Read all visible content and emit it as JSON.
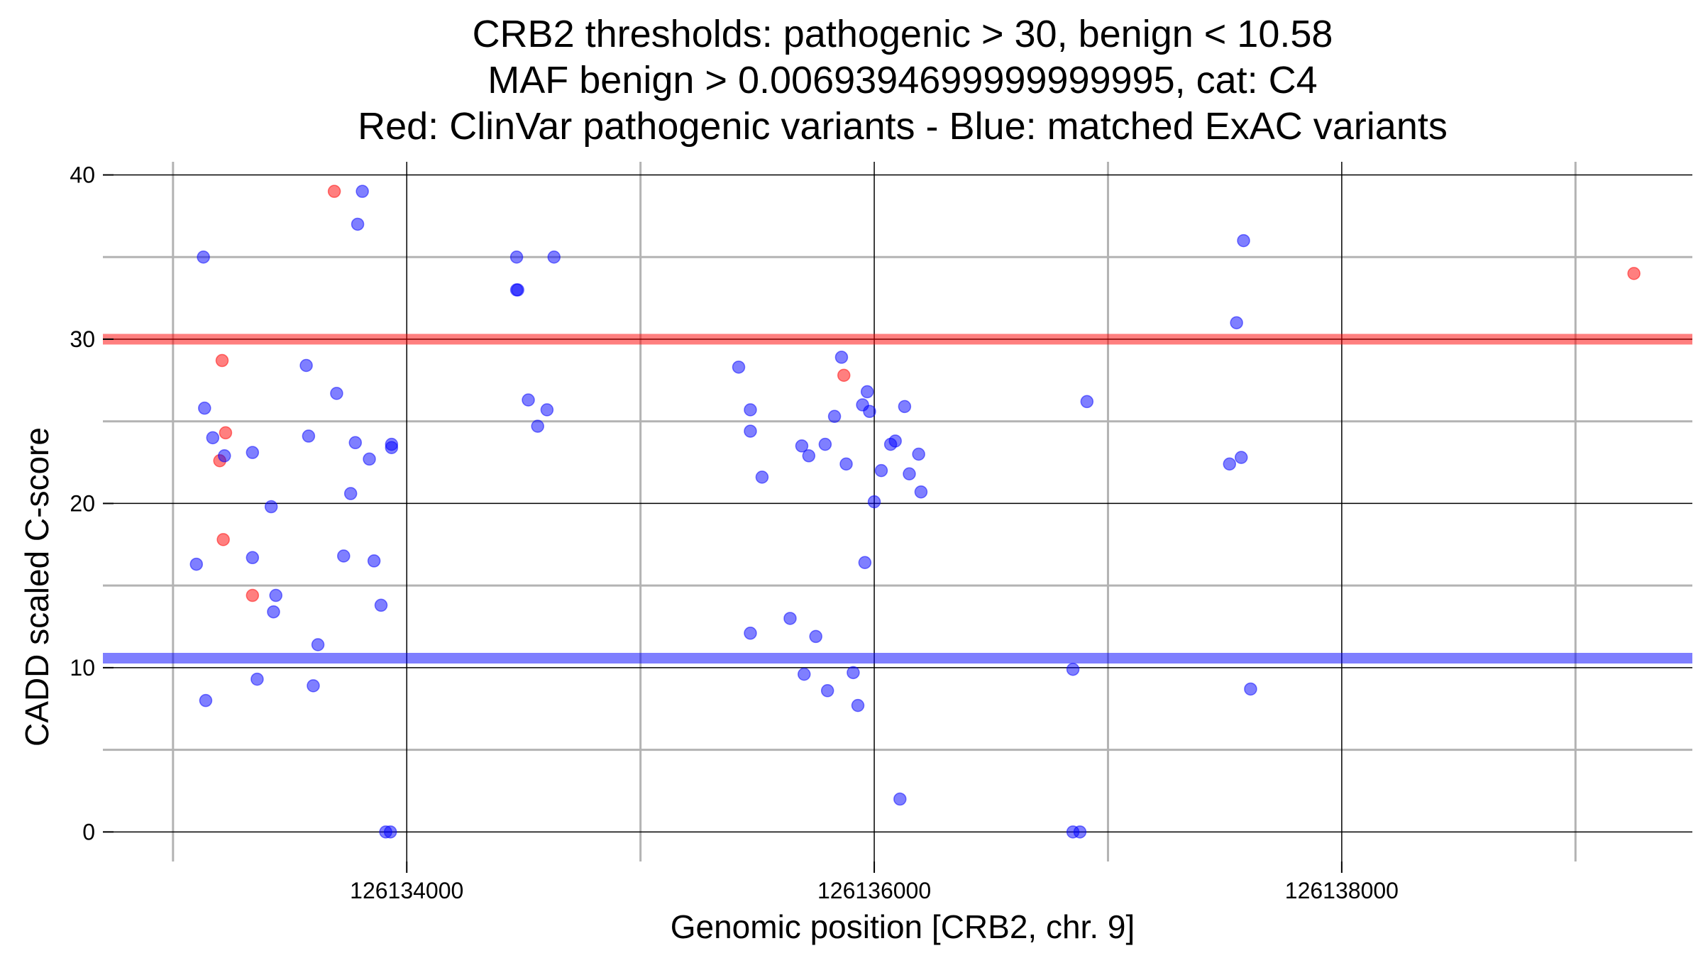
{
  "chart_data": {
    "type": "scatter",
    "title": [
      "CRB2 thresholds: pathogenic > 30, benign < 10.58",
      "MAF benign > 0.0069394699999999995, cat: C4",
      "Red: ClinVar pathogenic variants - Blue: matched ExAC variants"
    ],
    "xlabel": "Genomic position [CRB2, chr. 9]",
    "ylabel": "CADD scaled C-score",
    "xlim": [
      126132700,
      126139500
    ],
    "ylim": [
      -1.8,
      40.8
    ],
    "x_major_ticks": [
      126134000,
      126136000,
      126138000
    ],
    "x_tick_labels": [
      "126134000",
      "126136000",
      "126138000"
    ],
    "x_minor_gridlines": [
      126133000,
      126135000,
      126137000,
      126139000
    ],
    "y_major_ticks": [
      0,
      10,
      20,
      30,
      40
    ],
    "y_tick_labels": [
      "0",
      "10",
      "20",
      "30",
      "40"
    ],
    "y_minor_gridlines": [
      5,
      15,
      25,
      35
    ],
    "grid": true,
    "thresholds": [
      {
        "name": "pathogenic",
        "value": 30,
        "color": "#ff0000"
      },
      {
        "name": "benign",
        "value": 10.58,
        "color": "#0000ff"
      }
    ],
    "series": [
      {
        "name": "ClinVar pathogenic variants",
        "color": "#ff0000",
        "points": [
          [
            126133200,
            22.6
          ],
          [
            126133210,
            28.7
          ],
          [
            126133215,
            17.8
          ],
          [
            126133225,
            24.3
          ],
          [
            126133340,
            14.4
          ],
          [
            126133690,
            39.0
          ],
          [
            126135870,
            27.8
          ],
          [
            126139250,
            34.0
          ]
        ]
      },
      {
        "name": "matched ExAC variants",
        "color": "#0000ff",
        "points": [
          [
            126133100,
            16.3
          ],
          [
            126133130,
            35.0
          ],
          [
            126133135,
            25.8
          ],
          [
            126133140,
            8.0
          ],
          [
            126133170,
            24.0
          ],
          [
            126133220,
            22.9
          ],
          [
            126133340,
            23.1
          ],
          [
            126133340,
            16.7
          ],
          [
            126133360,
            9.3
          ],
          [
            126133420,
            19.8
          ],
          [
            126133430,
            13.4
          ],
          [
            126133440,
            14.4
          ],
          [
            126133570,
            28.4
          ],
          [
            126133580,
            24.1
          ],
          [
            126133600,
            8.9
          ],
          [
            126133620,
            11.4
          ],
          [
            126133700,
            26.7
          ],
          [
            126133730,
            16.8
          ],
          [
            126133760,
            20.6
          ],
          [
            126133780,
            23.7
          ],
          [
            126133790,
            37.0
          ],
          [
            126133810,
            39.0
          ],
          [
            126133840,
            22.7
          ],
          [
            126133860,
            16.5
          ],
          [
            126133890,
            13.8
          ],
          [
            126133910,
            0.0
          ],
          [
            126133930,
            0.0
          ],
          [
            126133935,
            23.6
          ],
          [
            126133935,
            23.4
          ],
          [
            126134470,
            35.0
          ],
          [
            126134470,
            33.0
          ],
          [
            126134475,
            33.0
          ],
          [
            126134520,
            26.3
          ],
          [
            126134560,
            24.7
          ],
          [
            126134600,
            25.7
          ],
          [
            126134630,
            35.0
          ],
          [
            126135420,
            28.3
          ],
          [
            126135470,
            25.7
          ],
          [
            126135470,
            24.4
          ],
          [
            126135470,
            12.1
          ],
          [
            126135520,
            21.6
          ],
          [
            126135640,
            13.0
          ],
          [
            126135690,
            23.5
          ],
          [
            126135700,
            9.6
          ],
          [
            126135720,
            22.9
          ],
          [
            126135750,
            11.9
          ],
          [
            126135790,
            23.6
          ],
          [
            126135800,
            8.6
          ],
          [
            126135830,
            25.3
          ],
          [
            126135860,
            28.9
          ],
          [
            126135880,
            22.4
          ],
          [
            126135910,
            9.7
          ],
          [
            126135930,
            7.7
          ],
          [
            126135950,
            26.0
          ],
          [
            126135960,
            16.4
          ],
          [
            126135970,
            26.8
          ],
          [
            126135980,
            25.6
          ],
          [
            126136000,
            20.1
          ],
          [
            126136030,
            22.0
          ],
          [
            126136070,
            23.6
          ],
          [
            126136090,
            23.8
          ],
          [
            126136110,
            2.0
          ],
          [
            126136130,
            25.9
          ],
          [
            126136150,
            21.8
          ],
          [
            126136190,
            23.0
          ],
          [
            126136200,
            20.7
          ],
          [
            126136850,
            9.9
          ],
          [
            126136850,
            0.0
          ],
          [
            126136880,
            0.0
          ],
          [
            126136910,
            26.2
          ],
          [
            126137520,
            22.4
          ],
          [
            126137550,
            31.0
          ],
          [
            126137570,
            22.8
          ],
          [
            126137580,
            36.0
          ],
          [
            126137610,
            8.7
          ]
        ]
      }
    ]
  }
}
